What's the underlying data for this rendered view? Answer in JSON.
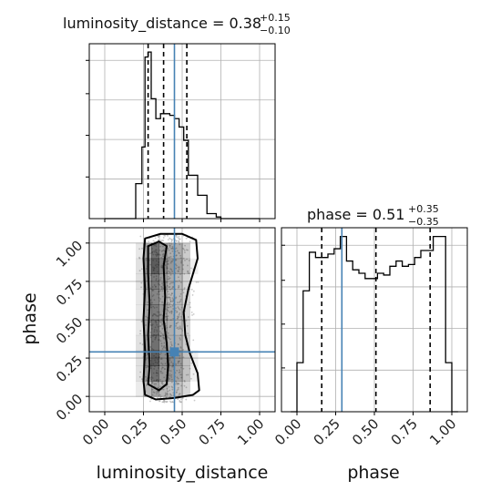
{
  "chart_data": [
    {
      "type": "histogram",
      "panel": "luminosity_distance-marginal",
      "title": {
        "main": "luminosity_distance = 0.38",
        "sup": "+0.15",
        "sub": "−0.10"
      },
      "xlim": [
        -0.1,
        1.1
      ],
      "bin_edges": [
        0.0,
        0.04,
        0.08,
        0.12,
        0.16,
        0.2,
        0.24,
        0.26,
        0.28,
        0.3,
        0.33,
        0.36,
        0.39,
        0.42,
        0.45,
        0.48,
        0.51,
        0.54,
        0.57,
        0.6,
        0.63,
        0.66,
        0.69,
        0.72,
        0.75,
        1.0
      ],
      "density": [
        0,
        0,
        0,
        0,
        0,
        0.21,
        0.43,
        0.97,
        1.0,
        0.72,
        0.6,
        0.63,
        0.63,
        0.62,
        0.6,
        0.55,
        0.47,
        0.26,
        0.26,
        0.14,
        0.14,
        0.03,
        0.03,
        0.01,
        0
      ],
      "quantiles": [
        0.28,
        0.38,
        0.53
      ],
      "truth": 0.45,
      "grid": true,
      "color": "#000000",
      "truth_color": "#4682b4"
    },
    {
      "type": "histogram",
      "panel": "phase-marginal",
      "title": {
        "main": "phase = 0.51",
        "sup": "+0.35",
        "sub": "−0.35"
      },
      "xlim": [
        -0.1,
        1.1
      ],
      "bin_edges": [
        -0.04,
        0.0,
        0.04,
        0.08,
        0.12,
        0.16,
        0.2,
        0.24,
        0.28,
        0.32,
        0.36,
        0.4,
        0.44,
        0.48,
        0.52,
        0.56,
        0.6,
        0.64,
        0.68,
        0.72,
        0.76,
        0.8,
        0.84,
        0.88,
        0.92,
        0.96,
        1.0,
        1.04
      ],
      "density": [
        0,
        0.28,
        0.69,
        0.91,
        0.88,
        0.88,
        0.9,
        0.93,
        1.0,
        0.86,
        0.81,
        0.79,
        0.76,
        0.76,
        0.79,
        0.78,
        0.83,
        0.86,
        0.83,
        0.84,
        0.88,
        0.92,
        0.92,
        1.0,
        1.0,
        0.28,
        0
      ],
      "quantiles": [
        0.16,
        0.51,
        0.86
      ],
      "truth": 0.29,
      "grid": true,
      "color": "#000000",
      "truth_color": "#4682b4"
    },
    {
      "type": "scatter",
      "panel": "2d-joint",
      "xlabel": "luminosity_distance",
      "ylabel": "phase",
      "xlim": [
        -0.1,
        1.1
      ],
      "ylim": [
        -0.1,
        1.1
      ],
      "x_ticks": [
        "0.00",
        "0.25",
        "0.50",
        "0.75",
        "1.00"
      ],
      "y_ticks": [
        "0.00",
        "0.25",
        "0.50",
        "0.75",
        "1.00"
      ],
      "truth": {
        "x": 0.45,
        "y": 0.29
      },
      "density_grid": {
        "x_edges": [
          0.2,
          0.25,
          0.3,
          0.35,
          0.4,
          0.45,
          0.5,
          0.55,
          0.6
        ],
        "y_edges": [
          0.0,
          0.1,
          0.2,
          0.3,
          0.4,
          0.5,
          0.6,
          0.7,
          0.8,
          0.9,
          1.0
        ],
        "values": [
          [
            0.1,
            0.35,
            0.45,
            0.35,
            0.3,
            0.3,
            0.2,
            0.05
          ],
          [
            0.15,
            0.5,
            0.7,
            0.5,
            0.5,
            0.45,
            0.3,
            0.08
          ],
          [
            0.15,
            0.55,
            0.8,
            0.55,
            0.55,
            0.5,
            0.3,
            0.08
          ],
          [
            0.15,
            0.5,
            0.7,
            0.5,
            0.4,
            0.4,
            0.25,
            0.05
          ],
          [
            0.12,
            0.45,
            0.7,
            0.45,
            0.4,
            0.35,
            0.2,
            0.05
          ],
          [
            0.12,
            0.45,
            0.65,
            0.5,
            0.4,
            0.35,
            0.2,
            0.05
          ],
          [
            0.12,
            0.45,
            0.6,
            0.45,
            0.35,
            0.35,
            0.2,
            0.05
          ],
          [
            0.15,
            0.5,
            0.65,
            0.5,
            0.4,
            0.35,
            0.2,
            0.05
          ],
          [
            0.15,
            0.55,
            0.8,
            0.6,
            0.5,
            0.45,
            0.3,
            0.08
          ],
          [
            0.12,
            0.45,
            0.7,
            0.5,
            0.4,
            0.4,
            0.25,
            0.05
          ]
        ]
      },
      "contours": [
        {
          "level": "outer",
          "points": [
            [
              0.26,
              0.01
            ],
            [
              0.33,
              -0.02
            ],
            [
              0.45,
              -0.01
            ],
            [
              0.57,
              0.01
            ],
            [
              0.61,
              0.04
            ],
            [
              0.6,
              0.15
            ],
            [
              0.55,
              0.28
            ],
            [
              0.52,
              0.4
            ],
            [
              0.51,
              0.55
            ],
            [
              0.54,
              0.7
            ],
            [
              0.6,
              0.9
            ],
            [
              0.59,
              1.02
            ],
            [
              0.5,
              1.06
            ],
            [
              0.36,
              1.06
            ],
            [
              0.26,
              1.03
            ],
            [
              0.25,
              0.9
            ],
            [
              0.26,
              0.7
            ],
            [
              0.25,
              0.5
            ],
            [
              0.26,
              0.3
            ],
            [
              0.25,
              0.1
            ]
          ]
        },
        {
          "level": "inner",
          "points": [
            [
              0.28,
              0.08
            ],
            [
              0.35,
              0.04
            ],
            [
              0.4,
              0.08
            ],
            [
              0.41,
              0.2
            ],
            [
              0.4,
              0.35
            ],
            [
              0.38,
              0.5
            ],
            [
              0.39,
              0.65
            ],
            [
              0.38,
              0.85
            ],
            [
              0.4,
              0.98
            ],
            [
              0.35,
              1.01
            ],
            [
              0.28,
              0.98
            ],
            [
              0.28,
              0.8
            ],
            [
              0.29,
              0.6
            ],
            [
              0.28,
              0.4
            ],
            [
              0.29,
              0.2
            ]
          ]
        }
      ]
    }
  ]
}
